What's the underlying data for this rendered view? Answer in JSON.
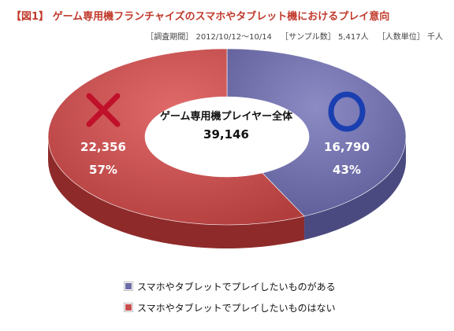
{
  "header": {
    "title": "【図1】 ゲーム専用機フランチャイズのスマホやタブレット機におけるプレイ意向",
    "survey_period": "［調査期間］ 2012/10/12〜10/14",
    "sample_size": "［サンプル数］ 5,417人",
    "unit": "［人数単位］ 千人"
  },
  "center_label": {
    "title": "ゲーム専用機プレイヤー全体",
    "total": "39,146"
  },
  "slices": [
    {
      "value_label": "16,790",
      "pct_label": "43%",
      "mark": "○",
      "mark_name": "circle-mark"
    },
    {
      "value_label": "22,356",
      "pct_label": "57%",
      "mark": "×",
      "mark_name": "cross-mark"
    }
  ],
  "legend": {
    "items": [
      "スマホやタブレットでプレイしたいものがある",
      "スマホやタブレットでプレイしたいものはない"
    ]
  },
  "colors": {
    "yes": "#6d6ca8",
    "yes_dark": "#4b4a80",
    "no": "#c94f4f",
    "no_dark": "#8f2a2a",
    "circle_mark": "#1a3fb0",
    "cross_mark": "#c0102a"
  },
  "chart_data": {
    "type": "pie",
    "title": "ゲーム専用機プレイヤー全体",
    "total": 39146,
    "categories": [
      "スマホやタブレットでプレイしたいものがある",
      "スマホやタブレットでプレイしたいものはない"
    ],
    "values": [
      16790,
      22356
    ],
    "percentages": [
      43,
      57
    ],
    "legend_position": "bottom"
  }
}
